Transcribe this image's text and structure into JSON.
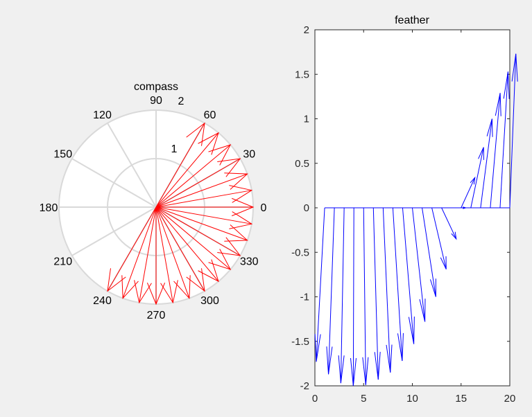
{
  "figure": {
    "background": "#f0f0f0"
  },
  "chart_data": [
    {
      "type": "compass",
      "title": "compass",
      "color": "#ff0000",
      "radial_ticks": [
        "1",
        "2"
      ],
      "angle_ticks": [
        "0",
        "30",
        "60",
        "90",
        "120",
        "150",
        "180",
        "210",
        "240",
        "270",
        "300",
        "330"
      ],
      "vectors_angle_deg": [
        -120,
        -110,
        -100,
        -90,
        -80,
        -70,
        -60,
        -50,
        -40,
        -30,
        -20,
        -10,
        0,
        10,
        20,
        30,
        40,
        50,
        60
      ],
      "vectors_magnitude": [
        2,
        2,
        2,
        2,
        2,
        2,
        2,
        2,
        2,
        2,
        2,
        2,
        2,
        2,
        2,
        2,
        2,
        2,
        2
      ]
    },
    {
      "type": "feather",
      "title": "feather",
      "color": "#0000ff",
      "xlim": [
        0,
        20
      ],
      "ylim": [
        -2,
        2
      ],
      "x_ticks": [
        "0",
        "5",
        "10",
        "15",
        "20"
      ],
      "y_ticks": [
        "-2",
        "-1.5",
        "-1",
        "-0.5",
        "0",
        "0.5",
        "1",
        "1.5",
        "2"
      ],
      "u": [
        -0.86,
        -0.61,
        -0.34,
        -0.06,
        0.22,
        0.5,
        0.74,
        0.96,
        1.15,
        1.29,
        1.41,
        1.47,
        1.5,
        1.48,
        1.42,
        1.31,
        1.18,
        1.01,
        0.82,
        0.62
      ],
      "v": [
        -1.73,
        -1.87,
        -1.97,
        -2.0,
        -1.99,
        -1.93,
        -1.85,
        -1.72,
        -1.53,
        -1.28,
        -1.0,
        -0.69,
        -0.35,
        0.0,
        0.34,
        0.68,
        1.0,
        1.29,
        1.53,
        1.73
      ]
    }
  ]
}
